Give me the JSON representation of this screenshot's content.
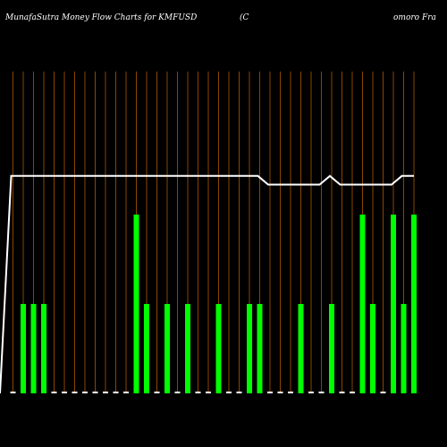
{
  "chart_data": {
    "type": "bar",
    "title": "MunafaSutra  Money Flow  Charts for KMFUSD",
    "title_right_a": "(C",
    "title_right_b": "omoro  Fra",
    "xlabel": "",
    "ylabel": "",
    "grid": "vertical",
    "colors": {
      "background": "#000000",
      "bar": "#00ff00",
      "gridline": "#8B4500",
      "line": "#ffffff",
      "text": "#ffffff"
    },
    "categories": [
      "",
      "",
      "",
      "",
      "",
      "",
      "",
      "",
      "",
      "",
      "",
      "",
      "",
      "",
      "",
      "",
      "",
      "",
      "",
      "",
      "",
      "",
      "",
      "",
      "",
      "",
      "",
      "",
      "",
      "",
      "",
      "",
      "",
      "",
      "",
      "",
      "",
      "",
      "",
      ""
    ],
    "series": [
      {
        "type": "bar",
        "values": [
          0.02,
          1,
          1,
          1,
          0.02,
          0.02,
          0.02,
          0.02,
          0.02,
          0.02,
          0.02,
          0.02,
          2,
          1,
          0.02,
          1,
          0.02,
          1,
          0.02,
          0.02,
          1,
          0.02,
          0.02,
          1,
          1,
          0.02,
          0.02,
          0.02,
          1,
          0.02,
          0.02,
          1,
          0.02,
          0.02,
          2,
          1,
          0.02,
          2,
          1,
          2
        ]
      },
      {
        "type": "line",
        "values": [
          0,
          25,
          25,
          25,
          25,
          25,
          25,
          25,
          25,
          25,
          25,
          25,
          25,
          25,
          25,
          25,
          25,
          25,
          25,
          25,
          25,
          25,
          25,
          25,
          25,
          25,
          24,
          24,
          24,
          24,
          24,
          24,
          25,
          24,
          24,
          24,
          24,
          24,
          24,
          25
        ]
      }
    ],
    "ylim": [
      0,
      4
    ],
    "line_ylim": [
      0,
      37
    ]
  }
}
